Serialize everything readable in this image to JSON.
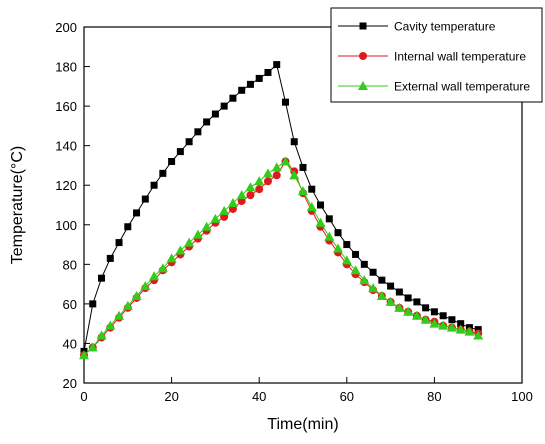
{
  "chart_data": {
    "type": "line",
    "title": "",
    "xlabel": "Time(min)",
    "ylabel": "Temperature(°C)",
    "xlim": [
      0,
      100
    ],
    "ylim": [
      20,
      200
    ],
    "xticks": [
      "0",
      "20",
      "40",
      "60",
      "80",
      "100"
    ],
    "yticks": [
      "20",
      "40",
      "60",
      "80",
      "100",
      "120",
      "140",
      "160",
      "180",
      "200"
    ],
    "grid": false,
    "legend_position": "top-right",
    "series": [
      {
        "name": "Cavity temperature",
        "marker": "square",
        "color": "#000000",
        "x": [
          0,
          2,
          4,
          6,
          8,
          10,
          12,
          14,
          16,
          18,
          20,
          22,
          24,
          26,
          28,
          30,
          32,
          34,
          36,
          38,
          40,
          42,
          44,
          46,
          48,
          50,
          52,
          54,
          56,
          58,
          60,
          62,
          64,
          66,
          68,
          70,
          72,
          74,
          76,
          78,
          80,
          82,
          84,
          86,
          88,
          90
        ],
        "y": [
          36,
          60,
          73,
          83,
          91,
          99,
          106,
          113,
          120,
          126,
          132,
          137,
          142,
          147,
          152,
          156,
          160,
          164,
          168,
          171,
          174,
          177,
          181,
          162,
          142,
          129,
          118,
          110,
          103,
          96,
          90,
          85,
          80,
          76,
          72,
          69,
          66,
          63,
          61,
          58,
          56,
          54,
          52,
          50,
          48,
          47
        ]
      },
      {
        "name": "Internal wall temperature",
        "marker": "circle",
        "color": "#e0191f",
        "x": [
          0,
          2,
          4,
          6,
          8,
          10,
          12,
          14,
          16,
          18,
          20,
          22,
          24,
          26,
          28,
          30,
          32,
          34,
          36,
          38,
          40,
          42,
          44,
          46,
          48,
          50,
          52,
          54,
          56,
          58,
          60,
          62,
          64,
          66,
          68,
          70,
          72,
          74,
          76,
          78,
          80,
          82,
          84,
          86,
          88,
          90
        ],
        "y": [
          34,
          38,
          43,
          48,
          53,
          58,
          63,
          68,
          72,
          77,
          81,
          85,
          89,
          93,
          97,
          101,
          104,
          108,
          112,
          115,
          118,
          122,
          125,
          132,
          127,
          116,
          107,
          99,
          92,
          86,
          80,
          75,
          71,
          67,
          64,
          61,
          58,
          56,
          54,
          52,
          51,
          49,
          48,
          47,
          46,
          45
        ]
      },
      {
        "name": "External wall temperature",
        "marker": "triangle",
        "color": "#33cc1a",
        "x": [
          0,
          2,
          4,
          6,
          8,
          10,
          12,
          14,
          16,
          18,
          20,
          22,
          24,
          26,
          28,
          30,
          32,
          34,
          36,
          38,
          40,
          42,
          44,
          46,
          48,
          50,
          52,
          54,
          56,
          58,
          60,
          62,
          64,
          66,
          68,
          70,
          72,
          74,
          76,
          78,
          80,
          82,
          84,
          86,
          88,
          90
        ],
        "y": [
          34,
          38,
          44,
          49,
          54,
          59,
          64,
          69,
          74,
          78,
          83,
          87,
          91,
          95,
          99,
          103,
          107,
          111,
          115,
          119,
          122,
          126,
          129,
          132,
          125,
          117,
          109,
          101,
          94,
          88,
          82,
          77,
          72,
          68,
          64,
          61,
          58,
          56,
          54,
          52,
          50,
          49,
          48,
          47,
          46,
          44
        ]
      }
    ]
  }
}
